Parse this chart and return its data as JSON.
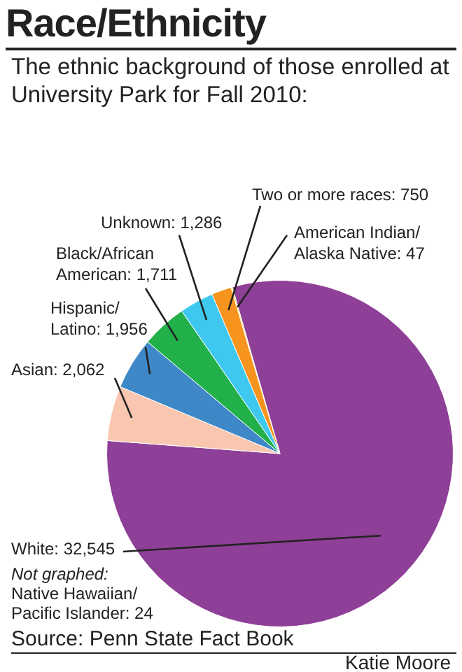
{
  "chart_data": {
    "type": "pie",
    "title": "Race/Ethnicity",
    "subtitle": "The ethnic background of those enrolled at University Park for Fall 2010:",
    "categories": [
      "White: 32,545",
      "Asian: 2,062",
      "Hispanic/Latino: 1,956",
      "Black/African American: 1,711",
      "Unknown: 1,286",
      "Two or more races: 750",
      "American Indian/Alaska Native: 47"
    ],
    "values": [
      32545,
      2062,
      1956,
      1711,
      1286,
      750,
      47
    ],
    "colors": [
      "#8e3f97",
      "#f9c7b0",
      "#3f88c8",
      "#22b04b",
      "#3ec8f0",
      "#f7941d",
      "#f5e04a"
    ],
    "legend": false,
    "annotations": [
      "Not graphed:",
      "Native Hawaiian/Pacific Islander: 24",
      "Source: Penn State Fact Book",
      "Katie Moore"
    ]
  }
}
